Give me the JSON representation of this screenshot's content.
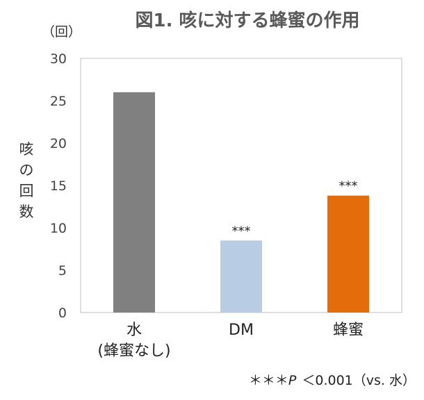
{
  "chart_data": {
    "type": "bar",
    "title": "図1. 咳に対する蜂蜜の作用",
    "unit_label": "（回）",
    "ylabel": "咳の回数",
    "ylim": [
      0,
      30
    ],
    "yticks": [
      0,
      5,
      10,
      15,
      20,
      25,
      30
    ],
    "grid": false,
    "categories": [
      {
        "line1": "水",
        "line2": "(蜂蜜なし)"
      },
      {
        "line1": "DM",
        "line2": ""
      },
      {
        "line1": "蜂蜜",
        "line2": ""
      }
    ],
    "values": [
      26,
      8.5,
      13.8
    ],
    "colors": [
      "#808080",
      "#b8cce4",
      "#e46c0a"
    ],
    "significance": [
      "",
      "***",
      "***"
    ],
    "footnote": {
      "stars": "＊＊＊",
      "p": "P",
      "text": "＜0.001（vs. 水）"
    }
  }
}
